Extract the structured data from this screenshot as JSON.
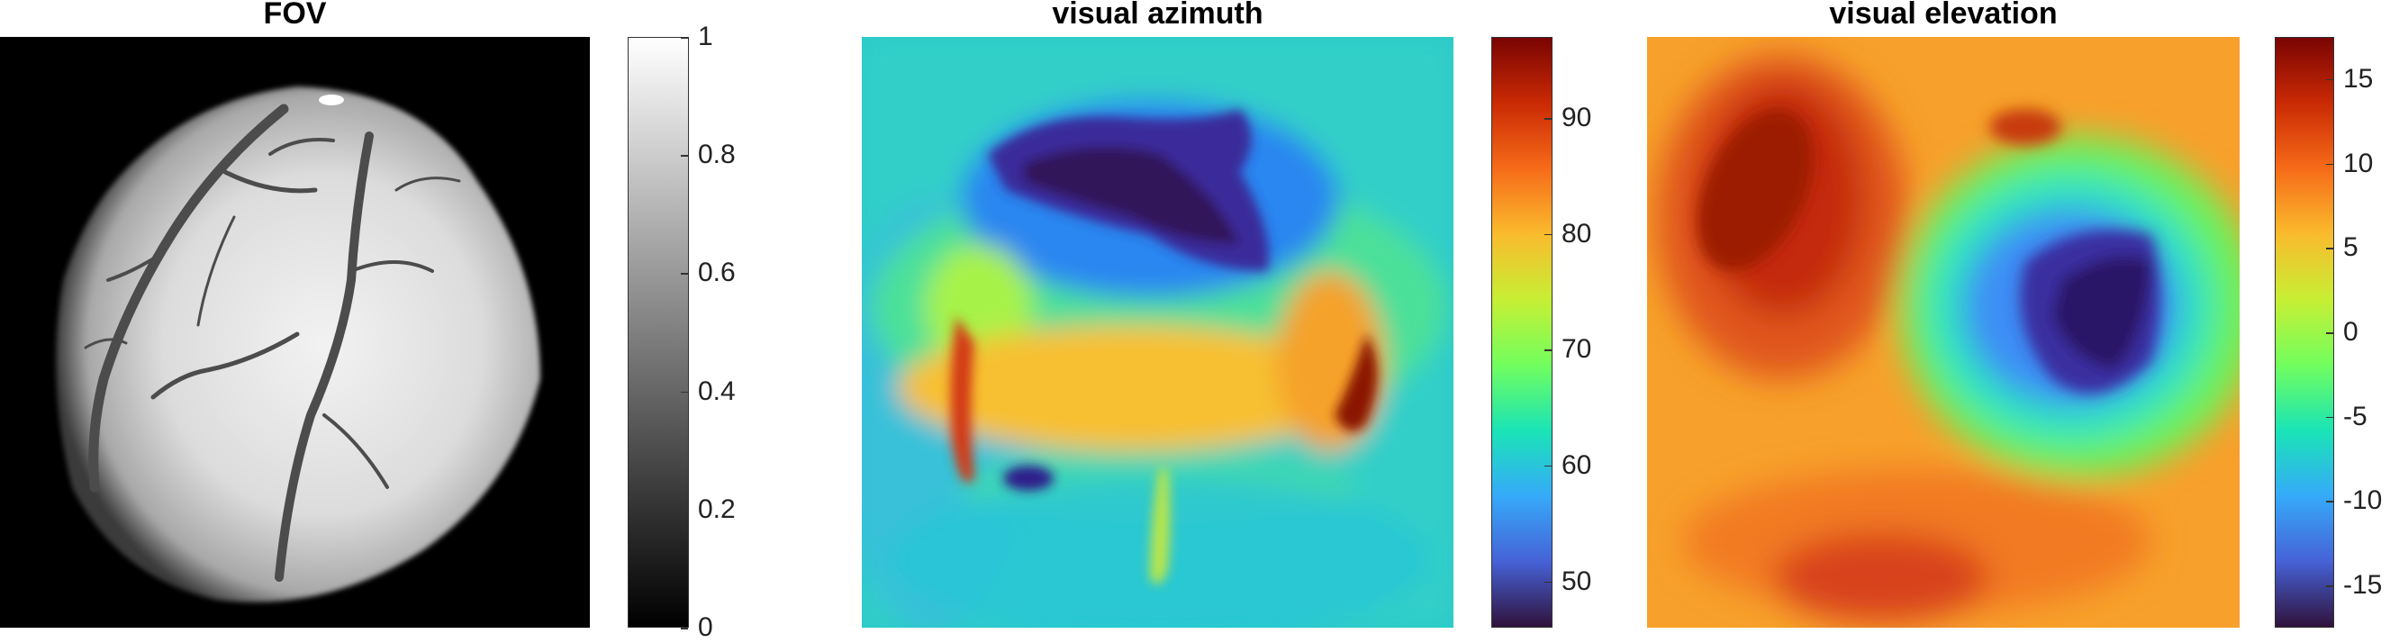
{
  "chart_data": [
    {
      "type": "heatmap",
      "title": "FOV",
      "colormap": "gray",
      "colorbar": {
        "min": 0,
        "max": 1,
        "ticks": [
          "0",
          "0.2",
          "0.4",
          "0.6",
          "0.8",
          "1"
        ],
        "tick_values": [
          0,
          0.2,
          0.4,
          0.6,
          0.8,
          1
        ]
      }
    },
    {
      "type": "heatmap",
      "title": "visual azimuth",
      "colormap": "turbo",
      "colorbar": {
        "min": 46,
        "max": 97,
        "ticks": [
          "50",
          "60",
          "70",
          "80",
          "90"
        ],
        "tick_values": [
          50,
          60,
          70,
          80,
          90
        ]
      }
    },
    {
      "type": "heatmap",
      "title": "visual elevation",
      "colormap": "turbo",
      "colorbar": {
        "min": -17.5,
        "max": 17.5,
        "ticks": [
          "-15",
          "-10",
          "-5",
          "0",
          "5",
          "10",
          "15"
        ],
        "tick_values": [
          -15,
          -10,
          -5,
          0,
          5,
          10,
          15
        ]
      }
    }
  ],
  "colors": {
    "background": "#ffffff",
    "fov_background": "#000000",
    "fov_brain": "#d9d9d9",
    "vessel": "#4a4a4a"
  }
}
